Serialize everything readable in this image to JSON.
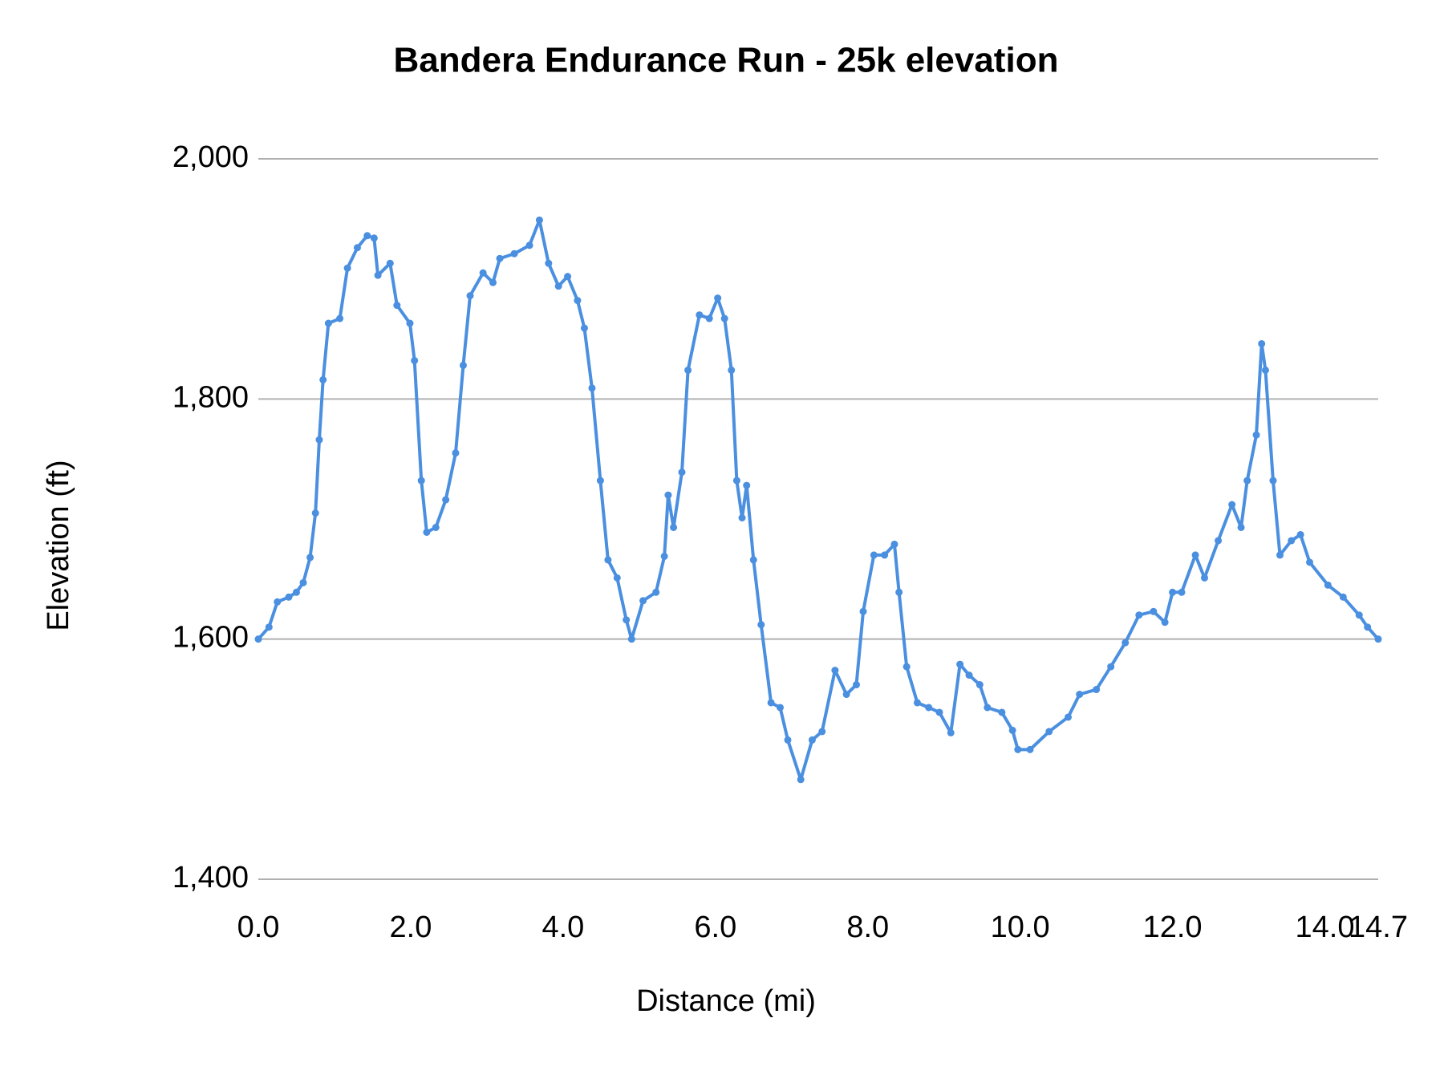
{
  "chart_data": {
    "type": "line",
    "title": "Bandera Endurance Run - 25k elevation",
    "x_label": "Distance (mi)",
    "y_label": "Elevation (ft)",
    "x": [
      0,
      0.14,
      0.25,
      0.4,
      0.5,
      0.59,
      0.68,
      0.75,
      0.8,
      0.85,
      0.92,
      1.07,
      1.17,
      1.3,
      1.43,
      1.52,
      1.57,
      1.73,
      1.82,
      1.99,
      2.05,
      2.14,
      2.21,
      2.33,
      2.46,
      2.59,
      2.69,
      2.78,
      2.95,
      3.08,
      3.17,
      3.36,
      3.56,
      3.69,
      3.81,
      3.94,
      4.06,
      4.19,
      4.28,
      4.38,
      4.49,
      4.59,
      4.71,
      4.83,
      4.9,
      5.05,
      5.22,
      5.33,
      5.38,
      5.45,
      5.56,
      5.64,
      5.79,
      5.92,
      6.03,
      6.12,
      6.21,
      6.28,
      6.35,
      6.41,
      6.5,
      6.6,
      6.73,
      6.85,
      6.95,
      7.12,
      7.27,
      7.4,
      7.57,
      7.72,
      7.85,
      7.94,
      8.08,
      8.22,
      8.35,
      8.41,
      8.51,
      8.65,
      8.8,
      8.94,
      9.09,
      9.21,
      9.33,
      9.47,
      9.57,
      9.76,
      9.9,
      9.97,
      10.13,
      10.38,
      10.63,
      10.78,
      11,
      11.19,
      11.38,
      11.56,
      11.75,
      11.9,
      12,
      12.12,
      12.3,
      12.42,
      12.6,
      12.78,
      12.9,
      12.98,
      13.1,
      13.17,
      13.22,
      13.32,
      13.41,
      13.56,
      13.68,
      13.8,
      14.04,
      14.24,
      14.45,
      14.56,
      14.7
    ],
    "series": [
      {
        "name": "Elevation (ft)",
        "color": "#4a8fe0",
        "values": [
          1600,
          1610,
          1631,
          1635,
          1639,
          1647,
          1668,
          1705,
          1766,
          1816,
          1863,
          1867,
          1909,
          1926,
          1936,
          1934,
          1903,
          1913,
          1878,
          1863,
          1832,
          1732,
          1689,
          1693,
          1716,
          1755,
          1828,
          1886,
          1905,
          1897,
          1917,
          1921,
          1928,
          1949,
          1913,
          1894,
          1902,
          1882,
          1859,
          1809,
          1732,
          1666,
          1651,
          1616,
          1600,
          1632,
          1639,
          1669,
          1720,
          1693,
          1739,
          1824,
          1870,
          1867,
          1884,
          1867,
          1824,
          1732,
          1701,
          1728,
          1666,
          1612,
          1547,
          1543,
          1516,
          1483,
          1516,
          1523,
          1574,
          1554,
          1562,
          1623,
          1670,
          1670,
          1679,
          1639,
          1577,
          1547,
          1543,
          1539,
          1522,
          1579,
          1570,
          1562,
          1543,
          1539,
          1524,
          1508,
          1508,
          1523,
          1535,
          1554,
          1558,
          1577,
          1597,
          1620,
          1623,
          1614,
          1639,
          1639,
          1670,
          1651,
          1682,
          1712,
          1693,
          1732,
          1770,
          1846,
          1824,
          1732,
          1670,
          1682,
          1687,
          1664,
          1645,
          1635,
          1620,
          1610,
          1600
        ]
      }
    ],
    "xlim": [
      0,
      14.7
    ],
    "xticks": [
      {
        "value": 0,
        "label": "0.0"
      },
      {
        "value": 2,
        "label": "2.0"
      },
      {
        "value": 4,
        "label": "4.0"
      },
      {
        "value": 6,
        "label": "6.0"
      },
      {
        "value": 8,
        "label": "8.0"
      },
      {
        "value": 10,
        "label": "10.0"
      },
      {
        "value": 12,
        "label": "12.0"
      },
      {
        "value": 14,
        "label": "14.0"
      },
      {
        "value": 14.7,
        "label": "14.7"
      }
    ],
    "ylim": [
      1400,
      2000
    ],
    "yticks": [
      {
        "value": 1400,
        "label": "1,400"
      },
      {
        "value": 1600,
        "label": "1,600"
      },
      {
        "value": 1800,
        "label": "1,800"
      },
      {
        "value": 2000,
        "label": "2,000"
      }
    ],
    "grid": true
  }
}
